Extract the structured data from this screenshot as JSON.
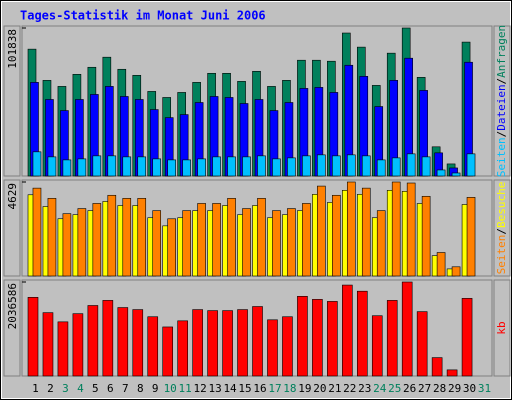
{
  "chart_data": [
    {
      "type": "bar",
      "title": "Tages-Statistik im Monat Juni 2006",
      "ylim": [
        0,
        101838
      ],
      "yticks": [
        101838
      ],
      "legend_separator": "/",
      "series": [
        {
          "name": "Anfragen",
          "color": "#00805c",
          "values": [
            87290,
            65800,
            61660,
            69970,
            74820,
            81750,
            73440,
            69280,
            58200,
            54040,
            57500,
            64430,
            70670,
            70670,
            65120,
            72050,
            61660,
            65820,
            79670,
            79670,
            78980,
            98380,
            88680,
            62350,
            84520,
            101838,
            67890,
            20090,
            8310,
            92140,
            null
          ]
        },
        {
          "name": "Dateien",
          "color": "#0000ff",
          "values": [
            64430,
            52650,
            45030,
            52650,
            56120,
            61660,
            54730,
            52650,
            45720,
            40180,
            42260,
            50570,
            54730,
            54040,
            49880,
            52650,
            45030,
            50570,
            60270,
            60970,
            57500,
            76210,
            68590,
            47800,
            65820,
            81060,
            58890,
            15930,
            5540,
            78290,
            null
          ]
        },
        {
          "name": "Seiten",
          "color": "#00c0ff",
          "values": [
            16630,
            13160,
            11080,
            11780,
            13860,
            13860,
            13160,
            13160,
            11780,
            11080,
            11080,
            11780,
            13160,
            13160,
            13160,
            13860,
            11780,
            12470,
            13860,
            14550,
            13860,
            14550,
            13860,
            11080,
            12470,
            15240,
            13160,
            4160,
            2080,
            15240,
            null
          ]
        }
      ]
    },
    {
      "type": "bar",
      "ylim": [
        0,
        4629
      ],
      "yticks": [
        4629
      ],
      "legend_separator": "/",
      "series": [
        {
          "name": "Besuche",
          "color": "#ffff00",
          "values": [
            4000,
            3420,
            2820,
            3020,
            3220,
            3670,
            3470,
            3470,
            2870,
            2470,
            2870,
            3220,
            3220,
            3470,
            3020,
            3470,
            2870,
            3020,
            3220,
            4020,
            3620,
            4220,
            4020,
            2870,
            4220,
            4170,
            3570,
            1000,
            350,
            3520,
            null
          ]
        },
        {
          "name": "Seiten",
          "color": "#ff8000",
          "values": [
            4327,
            3824,
            3069,
            3321,
            3573,
            3975,
            3824,
            3824,
            3220,
            2818,
            3220,
            3573,
            3573,
            3824,
            3321,
            3824,
            3220,
            3321,
            3573,
            4428,
            3975,
            4629,
            4327,
            3220,
            4629,
            4579,
            3925,
            1157,
            453,
            3874,
            null
          ]
        }
      ]
    },
    {
      "type": "bar",
      "ylim": [
        0,
        2036586
      ],
      "yticks": [
        2036586
      ],
      "legend_separator": "/",
      "categories": [
        "1",
        "2",
        "3",
        "4",
        "5",
        "6",
        "7",
        "8",
        "9",
        "10",
        "11",
        "12",
        "13",
        "14",
        "15",
        "16",
        "17",
        "18",
        "19",
        "20",
        "21",
        "22",
        "23",
        "24",
        "25",
        "26",
        "27",
        "28",
        "29",
        "30",
        "31"
      ],
      "category_colors": [
        "#000000",
        "#000000",
        "#00805c",
        "#00805c",
        "#000000",
        "#000000",
        "#000000",
        "#000000",
        "#000000",
        "#00805c",
        "#00805c",
        "#000000",
        "#000000",
        "#000000",
        "#000000",
        "#000000",
        "#00805c",
        "#00805c",
        "#000000",
        "#000000",
        "#000000",
        "#000000",
        "#000000",
        "#00805c",
        "#00805c",
        "#000000",
        "#000000",
        "#000000",
        "#000000",
        "#000000",
        "#00805c"
      ],
      "series": [
        {
          "name": "kb",
          "color": "#ff0000",
          "values": [
            1704550,
            1372490,
            1173260,
            1350360,
            1527450,
            1638140,
            1483180,
            1438910,
            1283950,
            1062580,
            1195400,
            1438910,
            1416770,
            1416770,
            1438910,
            1505320,
            1217540,
            1283950,
            1726690,
            1660280,
            1616000,
            1970190,
            1837370,
            1306080,
            1638140,
            2036586,
            1394630,
            398470,
            132820,
            1682410,
            null
          ]
        }
      ]
    }
  ]
}
